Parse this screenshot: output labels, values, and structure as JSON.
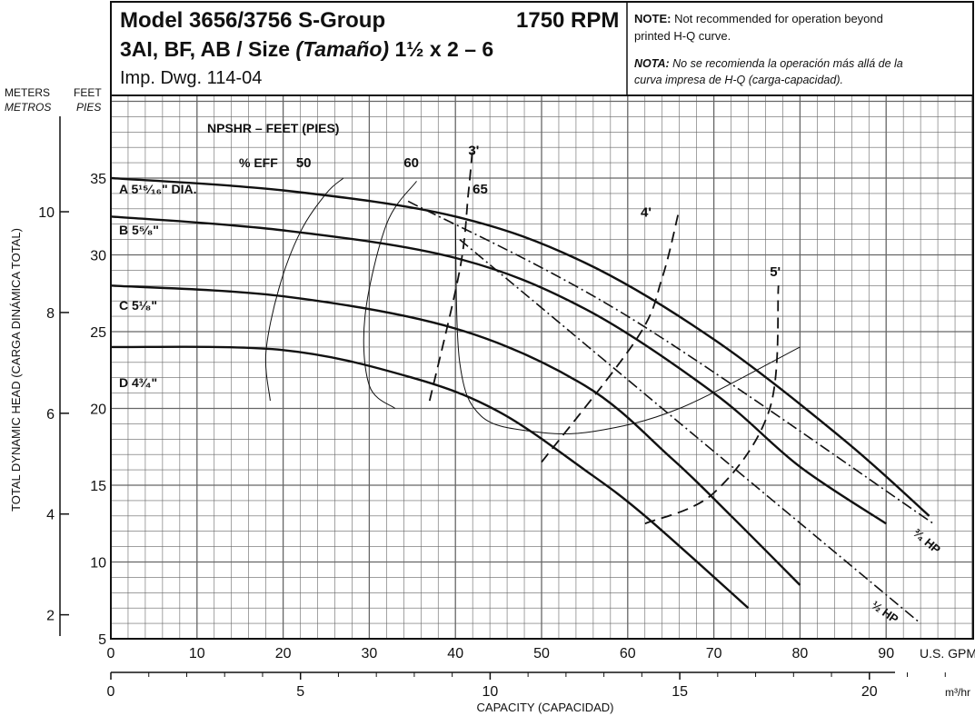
{
  "header": {
    "model_line": "Model 3656/3756 S-Group",
    "rpm": "1750 RPM",
    "size_line_prefix": "3AI, BF, AB / Size ",
    "size_word": "(Tamaño)",
    "size_value": " 1½ x 2 – 6",
    "drawing": "Imp. Dwg. 114-04",
    "note_label": "NOTE:",
    "note_text_1": " Not recommended for operation beyond",
    "note_text_2": "printed H-Q curve.",
    "nota_label": "NOTA:",
    "nota_text_1": " No se recomienda la operación más allá de la",
    "nota_text_2": "curva impresa de H-Q (carga-capacidad)."
  },
  "axes": {
    "meters_label": "METERS",
    "metros_label": "METROS",
    "feet_label": "FEET",
    "pies_label": "PIES",
    "y_title": "TOTAL DYNAMIC HEAD (CARGA DINÁMICA TOTAL)",
    "gpm_unit": "U.S. GPM",
    "m3_unit": "m³/hr",
    "x_title": "CAPACITY (CAPACIDAD)"
  },
  "labels": {
    "npsh": "NPSHR – FEET (PIES)",
    "eff": "% EFF",
    "imp_a": "A 5¹⁵⁄₁₆\" DIA.",
    "imp_b": "B 5⁵⁄₈\"",
    "imp_c": "C 5¹⁄₈\"",
    "imp_d": "D 4³⁄₄\"",
    "hp_34": "³⁄₄ HP",
    "hp_12": "½ HP"
  },
  "chart_data": {
    "type": "line",
    "xlabel": "CAPACITY (CAPACIDAD)",
    "ylabel": "TOTAL DYNAMIC HEAD (CARGA DINÁMICA TOTAL)",
    "x_unit": "U.S. GPM",
    "y_unit": "FEET",
    "xlim": [
      0,
      100
    ],
    "ylim": [
      5,
      40
    ],
    "grid": true,
    "x_ticks": [
      0,
      10,
      20,
      30,
      40,
      50,
      60,
      70,
      80,
      90
    ],
    "y_ticks_feet": [
      5,
      10,
      15,
      20,
      25,
      30,
      35
    ],
    "y_ticks_meters": [
      2,
      4,
      6,
      8,
      10
    ],
    "x_ticks_m3hr": [
      0,
      5,
      10,
      15,
      20
    ],
    "head_curves": [
      {
        "name": "A 5¹⁵⁄₁₆\" DIA.",
        "x": [
          0,
          20,
          40,
          55,
          70,
          85,
          95
        ],
        "y": [
          35,
          34.2,
          32.5,
          29.5,
          24.5,
          18,
          13
        ]
      },
      {
        "name": "B 5⁵⁄₈\"",
        "x": [
          0,
          20,
          40,
          55,
          70,
          80,
          90
        ],
        "y": [
          32.5,
          31.6,
          29.8,
          26.5,
          21,
          16.2,
          12.5
        ]
      },
      {
        "name": "C 5¹⁄₈\"",
        "x": [
          0,
          20,
          40,
          55,
          65,
          72,
          80
        ],
        "y": [
          28,
          27.3,
          25.2,
          21.5,
          16.8,
          13,
          8.5
        ]
      },
      {
        "name": "D 4³⁄₄\"",
        "x": [
          0,
          20,
          35,
          45,
          55,
          62,
          74
        ],
        "y": [
          24,
          23.8,
          22,
          19.8,
          16,
          13,
          7
        ]
      }
    ],
    "efficiency_curves": [
      {
        "name": "50",
        "x": [
          18.5,
          18,
          19.5,
          22,
          25,
          27
        ],
        "y": [
          20.5,
          23.6,
          27.8,
          31.5,
          34,
          35
        ]
      },
      {
        "name": "60",
        "x": [
          33,
          30,
          29.5,
          32,
          35.5
        ],
        "y": [
          20,
          21.5,
          26,
          32,
          34.8
        ]
      },
      {
        "name": "65",
        "x": [
          40,
          40.5,
          43,
          49,
          56,
          66,
          80
        ],
        "y": [
          32,
          23,
          19.5,
          18.5,
          18.5,
          20,
          24
        ]
      }
    ],
    "npsh_curves": [
      {
        "name": "3'",
        "x": [
          37,
          40.5,
          41.5,
          42
        ],
        "y": [
          20.5,
          29,
          34,
          37
        ]
      },
      {
        "name": "4'",
        "x": [
          50,
          61,
          64,
          66
        ],
        "y": [
          16.5,
          24.5,
          28.5,
          33
        ]
      },
      {
        "name": "5'",
        "x": [
          62,
          70,
          76.5,
          77.5
        ],
        "y": [
          12.5,
          14.5,
          20,
          28
        ]
      }
    ],
    "hp_limits": [
      {
        "name": "³⁄₄ HP",
        "x": [
          34.5,
          60,
          95.5
        ],
        "y": [
          33.5,
          26,
          12.5
        ]
      },
      {
        "name": "½ HP",
        "x": [
          40.5,
          64,
          94
        ],
        "y": [
          31,
          20,
          6
        ]
      }
    ]
  }
}
